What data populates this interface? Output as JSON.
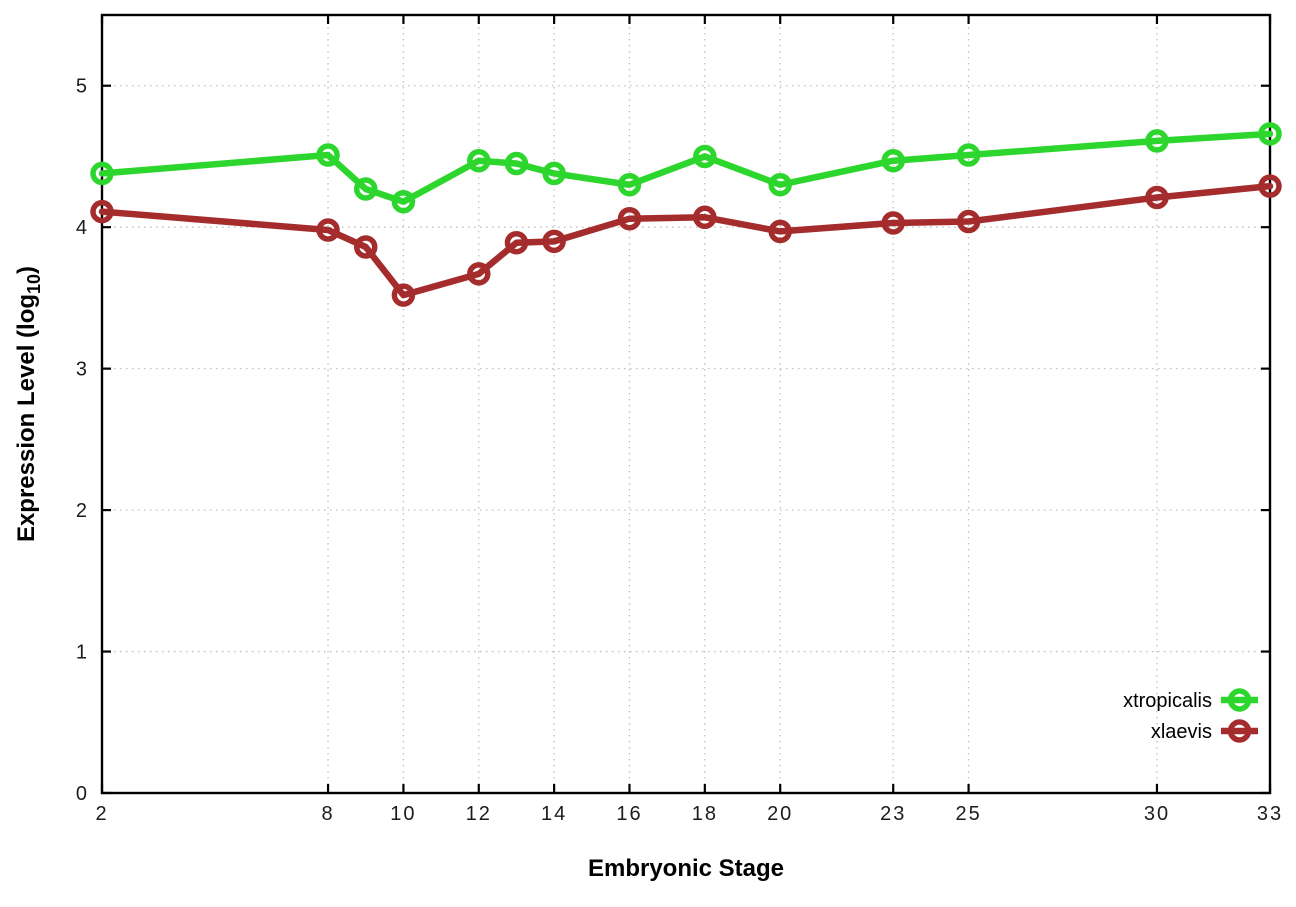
{
  "chart_data": {
    "type": "line",
    "title": "",
    "xlabel": "Embryonic Stage",
    "ylabel": {
      "text": "Expression Level (log10)",
      "main": "Expression Level (log",
      "sub": "10",
      "suffix": ")"
    },
    "x": [
      2,
      8,
      9,
      10,
      12,
      13,
      14,
      16,
      18,
      20,
      23,
      25,
      30,
      33
    ],
    "series": [
      {
        "name": "xtropicalis",
        "color": "#2dd62d",
        "values": [
          4.38,
          4.51,
          4.27,
          4.18,
          4.47,
          4.45,
          4.38,
          4.3,
          4.5,
          4.3,
          4.47,
          4.51,
          4.61,
          4.66
        ]
      },
      {
        "name": "xlaevis",
        "color": "#a52c2c",
        "values": [
          4.11,
          3.98,
          3.86,
          3.52,
          3.67,
          3.89,
          3.9,
          4.06,
          4.07,
          3.97,
          4.03,
          4.04,
          4.21,
          4.29
        ]
      }
    ],
    "xticks": [
      2,
      8,
      10,
      12,
      14,
      16,
      18,
      20,
      23,
      25,
      30,
      33
    ],
    "yticks": [
      0,
      1,
      2,
      3,
      4,
      5
    ],
    "xlim": [
      2,
      33
    ],
    "ylim": [
      0,
      5.5
    ],
    "grid": true,
    "grid_color": "#c0c0c0",
    "border_color": "#000000",
    "background": "#ffffff",
    "legend_position": "bottom-right",
    "legend_labels": [
      "xtropicalis",
      "xlaevis"
    ]
  }
}
